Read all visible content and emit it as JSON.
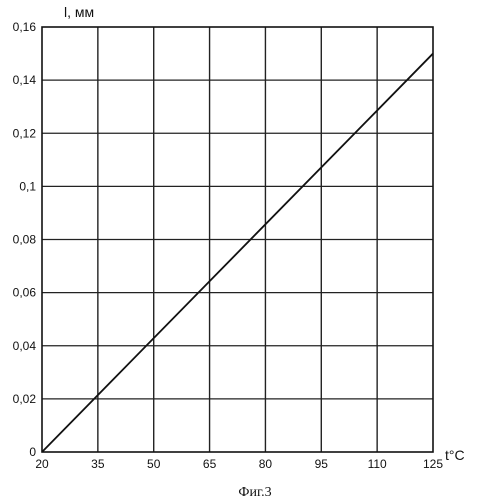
{
  "chart_data": {
    "type": "line",
    "ylabel": "l, мм",
    "xlabel": "t°C",
    "caption": "Фиг.3",
    "x_ticks": [
      "20",
      "35",
      "50",
      "65",
      "80",
      "95",
      "110",
      "125"
    ],
    "y_ticks": [
      "0",
      "0,02",
      "0,04",
      "0,06",
      "0,08",
      "0,1",
      "0,12",
      "0,14",
      "0,16"
    ],
    "xlim": [
      20,
      125
    ],
    "ylim": [
      0,
      0.16
    ],
    "grid": true,
    "series": [
      {
        "x": [
          20,
          125
        ],
        "y": [
          0,
          0.15
        ]
      }
    ],
    "colors": {
      "line": "#111111",
      "grid": "#222222",
      "background": "#ffffff"
    }
  }
}
